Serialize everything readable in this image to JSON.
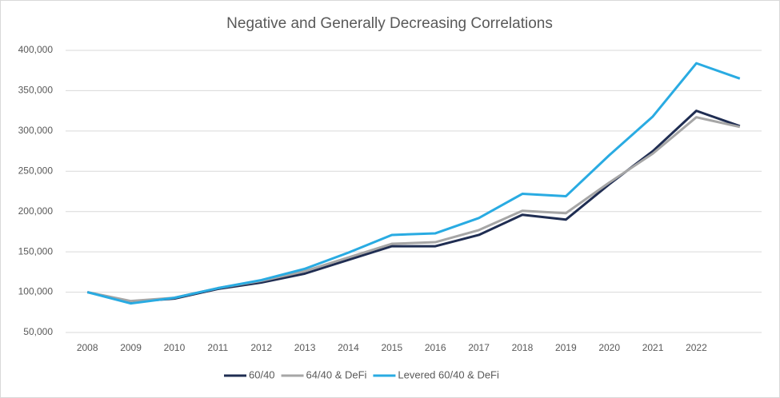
{
  "chart_data": {
    "type": "line",
    "title": "Negative and Generally Decreasing Correlations",
    "categories": [
      "2008",
      "2009",
      "2010",
      "2011",
      "2012",
      "2013",
      "2014",
      "2015",
      "2016",
      "2017",
      "2018",
      "2019",
      "2020",
      "2021",
      "2022",
      null
    ],
    "series": [
      {
        "name": "60/40",
        "color": "#1f2d52",
        "values": [
          100000,
          88000,
          92000,
          104000,
          112000,
          123000,
          140000,
          157000,
          157000,
          171000,
          196000,
          190000,
          234000,
          275000,
          325000,
          306000
        ]
      },
      {
        "name": "64/40 & DeFi",
        "color": "#a6a6a6",
        "values": [
          100000,
          89000,
          93000,
          105000,
          114000,
          126000,
          143000,
          160000,
          162000,
          177000,
          201000,
          198000,
          236000,
          272000,
          317000,
          305000
        ]
      },
      {
        "name": "Levered 60/40 & DeFi",
        "color": "#29abe2",
        "values": [
          100000,
          86000,
          93000,
          105000,
          115000,
          129000,
          149000,
          171000,
          173000,
          192000,
          222000,
          219000,
          270000,
          318000,
          384000,
          365000
        ]
      }
    ],
    "ylim": [
      50000,
      400000
    ],
    "yticks": [
      {
        "value": 50000,
        "label": "50,000"
      },
      {
        "value": 100000,
        "label": "100,000"
      },
      {
        "value": 150000,
        "label": "150,000"
      },
      {
        "value": 200000,
        "label": "200,000"
      },
      {
        "value": 250000,
        "label": "250,000"
      },
      {
        "value": 300000,
        "label": "300,000"
      },
      {
        "value": 350000,
        "label": "350,000"
      },
      {
        "value": 400000,
        "label": "400,000"
      }
    ],
    "grid": true,
    "legend": "bottom"
  }
}
